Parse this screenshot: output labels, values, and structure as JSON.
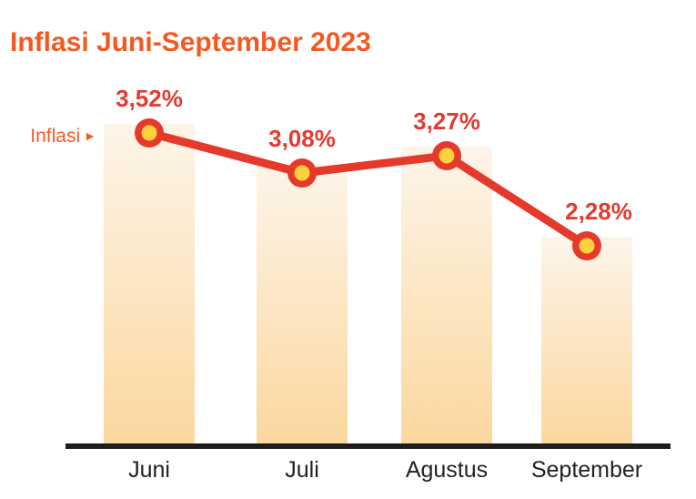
{
  "icons": {
    "arrow_right": "►"
  },
  "colors": {
    "background": "#FFFFFF",
    "title": "#F15A25",
    "value_label": "#E23B31",
    "line": "#E5392C",
    "dot_ring": "#E5392C",
    "dot_fill": "#FBD23C",
    "bar_top": "#FDF5E9",
    "bar_bottom": "#FBD79E",
    "axis": "#1D1D1B",
    "category_label": "#231F20"
  },
  "chart_data": {
    "type": "bar",
    "subtype": "bars-with-line-overlay-and-point-markers",
    "title": "Inflasi Juni-September 2023",
    "series_label": "Inflasi",
    "categories": [
      "Juni",
      "Juli",
      "Agustus",
      "September"
    ],
    "values": [
      3.52,
      3.08,
      3.27,
      2.28
    ],
    "value_labels": [
      "3,52%",
      "3,08%",
      "3,27%",
      "2,28%"
    ],
    "unit": "%",
    "ylim": [
      0,
      3.6
    ],
    "grid": false,
    "legend": "none",
    "y_axis_shown": false,
    "x_axis_line": true
  }
}
